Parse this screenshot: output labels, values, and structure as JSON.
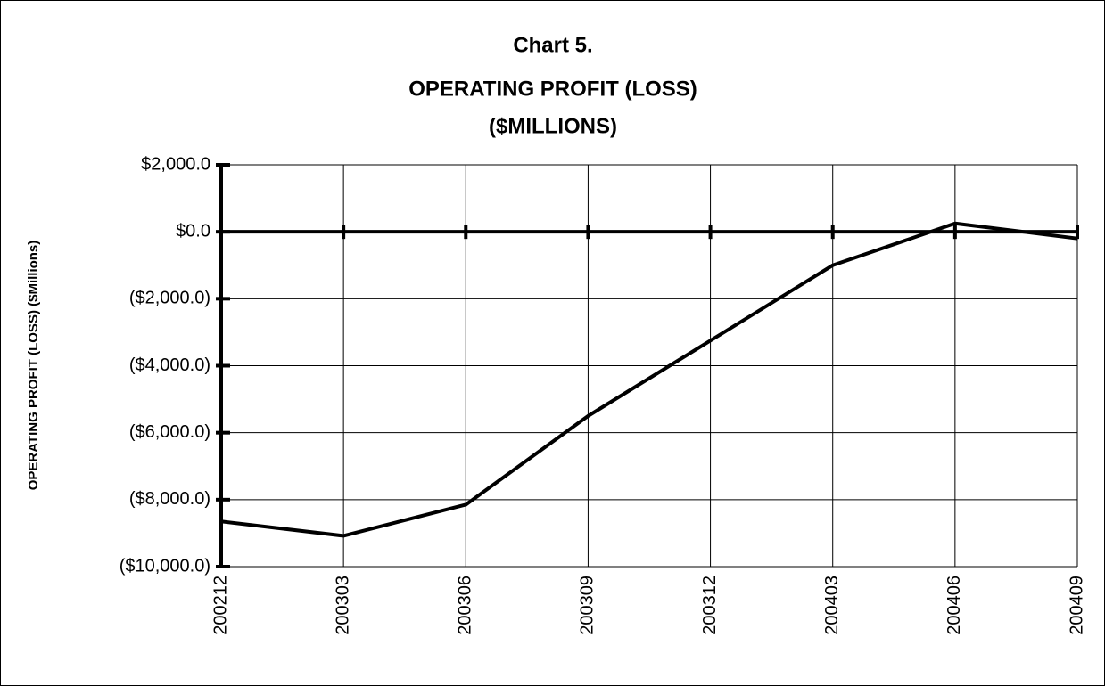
{
  "chart_data": {
    "type": "line",
    "title": [
      "Chart 5.",
      "OPERATING PROFIT (LOSS)",
      "($MILLIONS)"
    ],
    "y_label": "OPERATING PROFIT (LOSS) ($Millions)",
    "categories": [
      "200212",
      "200303",
      "200306",
      "200309",
      "200312",
      "200403",
      "200406",
      "200409"
    ],
    "series": [
      {
        "name": "Operating Profit (Loss)",
        "color": "#000000",
        "values": [
          -8650,
          -9080,
          -8150,
          -5500,
          -3250,
          -1000,
          250,
          -200
        ]
      }
    ],
    "ylim": [
      -10000,
      2000
    ],
    "yticks": [
      {
        "value": 2000,
        "label": "$2,000.0"
      },
      {
        "value": 0,
        "label": "$0.0"
      },
      {
        "value": -2000,
        "label": "($2,000.0)"
      },
      {
        "value": -4000,
        "label": "($4,000.0)"
      },
      {
        "value": -6000,
        "label": "($6,000.0)"
      },
      {
        "value": -8000,
        "label": "($8,000.0)"
      },
      {
        "value": -10000,
        "label": "($10,000.0)"
      }
    ],
    "grid": true
  }
}
